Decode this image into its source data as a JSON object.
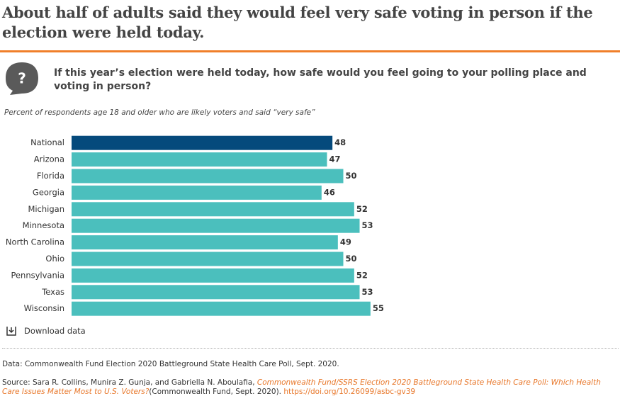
{
  "header": {
    "title": "About half of adults said they would feel very safe voting in person if the election were held today.",
    "question": "If this year’s election were held today, how safe would you feel going to your polling place and voting in person?"
  },
  "chart_data": {
    "type": "bar",
    "orientation": "horizontal",
    "subtitle": "Percent of respondents age 18 and older who are likely voters and said “very safe”",
    "categories": [
      "National",
      "Arizona",
      "Florida",
      "Georgia",
      "Michigan",
      "Minnesota",
      "North Carolina",
      "Ohio",
      "Pennsylvania",
      "Texas",
      "Wisconsin"
    ],
    "values": [
      48,
      47,
      50,
      46,
      52,
      53,
      49,
      50,
      52,
      53,
      55
    ],
    "colors": [
      "#054a7c",
      "#4bbfbd",
      "#4bbfbd",
      "#4bbfbd",
      "#4bbfbd",
      "#4bbfbd",
      "#4bbfbd",
      "#4bbfbd",
      "#4bbfbd",
      "#4bbfbd",
      "#4bbfbd"
    ]
  },
  "download": "Download data",
  "data_note": "Data: Commonwealth Fund Election 2020 Battleground State Health Care Poll, Sept. 2020.",
  "source": {
    "authors": "Source: Sara R. Collins, Munira Z. Gunja, and Gabriella N. Aboulafia,",
    "report": "Commonwealth Fund/SSRS Election 2020 Battleground State Health Care Poll: Which Health Care Issues Matter Most to U.S. Voters?",
    "publisher": "(Commonwealth Fund, Sept. 2020).",
    "doi": "https://doi.org/10.26099/asbc-gv39"
  }
}
